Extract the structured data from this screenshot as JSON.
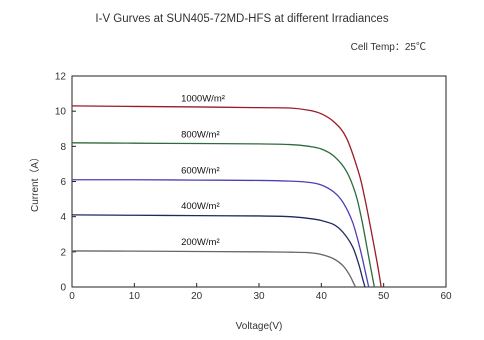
{
  "chart_data": {
    "type": "line",
    "title": "I-V Gurves at SUN405-72MD-HFS at different Irradiances",
    "subtitle": "Cell Temp：25℃",
    "xlabel": "Voltage(V)",
    "ylabel": "Current（A）",
    "xlim": [
      0,
      60
    ],
    "ylim": [
      0,
      12
    ],
    "xticks": [
      "0",
      "10",
      "20",
      "30",
      "40",
      "50",
      "60"
    ],
    "yticks": [
      "0",
      "2",
      "4",
      "6",
      "8",
      "10",
      "12"
    ],
    "grid": false,
    "series": [
      {
        "name": "1000W/m²",
        "color": "#9b1b2a",
        "points": [
          [
            0,
            10.3
          ],
          [
            10,
            10.27
          ],
          [
            20,
            10.24
          ],
          [
            30,
            10.2
          ],
          [
            35,
            10.18
          ],
          [
            38,
            10.05
          ],
          [
            40,
            9.85
          ],
          [
            42,
            9.4
          ],
          [
            44,
            8.5
          ],
          [
            46,
            6.5
          ],
          [
            47,
            5.0
          ],
          [
            48,
            3.2
          ],
          [
            49,
            1.3
          ],
          [
            49.6,
            0
          ]
        ]
      },
      {
        "name": "800W/m²",
        "color": "#2e6b3c",
        "points": [
          [
            0,
            8.2
          ],
          [
            10,
            8.18
          ],
          [
            20,
            8.16
          ],
          [
            30,
            8.14
          ],
          [
            35,
            8.1
          ],
          [
            38,
            8.0
          ],
          [
            40,
            7.85
          ],
          [
            42,
            7.45
          ],
          [
            44,
            6.6
          ],
          [
            45.5,
            5.3
          ],
          [
            46.5,
            3.8
          ],
          [
            47.5,
            1.9
          ],
          [
            48.5,
            0
          ]
        ]
      },
      {
        "name": "600W/m²",
        "color": "#4a41b5",
        "points": [
          [
            0,
            6.1
          ],
          [
            10,
            6.1
          ],
          [
            20,
            6.08
          ],
          [
            30,
            6.06
          ],
          [
            35,
            6.02
          ],
          [
            38,
            5.95
          ],
          [
            40,
            5.8
          ],
          [
            42,
            5.4
          ],
          [
            43.5,
            4.8
          ],
          [
            45,
            3.7
          ],
          [
            46.2,
            2.2
          ],
          [
            47.1,
            0.8
          ],
          [
            47.6,
            0
          ]
        ]
      },
      {
        "name": "400W/m²",
        "color": "#1f2a5e",
        "points": [
          [
            0,
            4.1
          ],
          [
            10,
            4.08
          ],
          [
            20,
            4.06
          ],
          [
            30,
            4.04
          ],
          [
            35,
            4.0
          ],
          [
            38,
            3.9
          ],
          [
            40,
            3.78
          ],
          [
            42,
            3.55
          ],
          [
            43.5,
            3.1
          ],
          [
            45,
            2.3
          ],
          [
            46,
            1.3
          ],
          [
            46.6,
            0.5
          ],
          [
            47,
            0
          ]
        ]
      },
      {
        "name": "200W/m²",
        "color": "#666666",
        "points": [
          [
            0,
            2.05
          ],
          [
            10,
            2.04
          ],
          [
            20,
            2.02
          ],
          [
            30,
            2.0
          ],
          [
            35,
            1.98
          ],
          [
            38,
            1.95
          ],
          [
            40,
            1.85
          ],
          [
            42,
            1.6
          ],
          [
            43.5,
            1.2
          ],
          [
            44.5,
            0.7
          ],
          [
            45.2,
            0.2
          ],
          [
            45.5,
            0
          ]
        ]
      }
    ],
    "series_labels": [
      {
        "text": "1000W/m²",
        "x": 17.5,
        "y": 10.55
      },
      {
        "text": "800W/m²",
        "x": 17.5,
        "y": 8.5
      },
      {
        "text": "600W/m²",
        "x": 17.5,
        "y": 6.45
      },
      {
        "text": "400W/m²",
        "x": 17.5,
        "y": 4.45
      },
      {
        "text": "200W/m²",
        "x": 17.5,
        "y": 2.4
      }
    ]
  }
}
